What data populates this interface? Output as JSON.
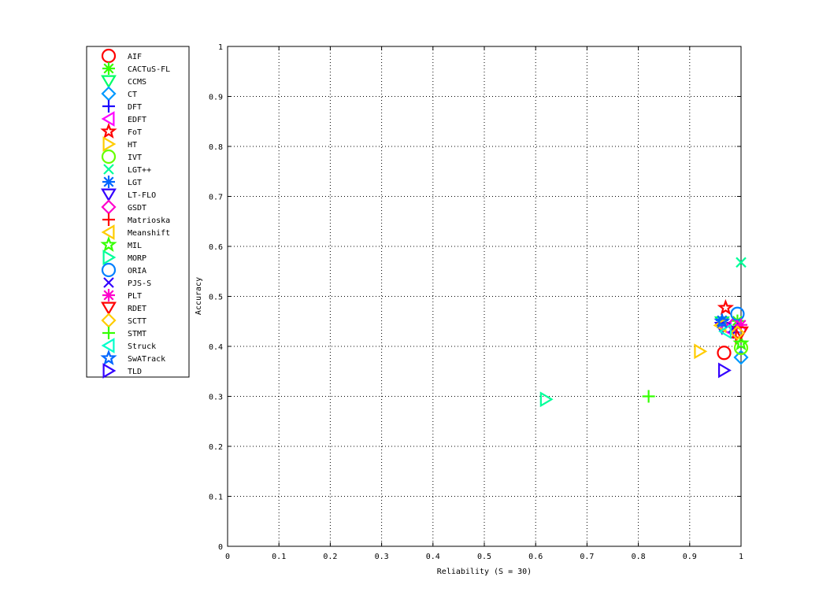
{
  "chart_data": {
    "type": "scatter",
    "title": "",
    "xlabel": "Reliability (S = 30)",
    "ylabel": "Accuracy",
    "xlim": [
      0,
      1
    ],
    "ylim": [
      0,
      1
    ],
    "xticks": [
      "0",
      "0.1",
      "0.2",
      "0.3",
      "0.4",
      "0.5",
      "0.6",
      "0.7",
      "0.8",
      "0.9",
      "1"
    ],
    "yticks": [
      "0",
      "0.1",
      "0.2",
      "0.3",
      "0.4",
      "0.5",
      "0.6",
      "0.7",
      "0.8",
      "0.9",
      "1"
    ],
    "grid": true,
    "legend_position": "outside-left",
    "series": [
      {
        "name": "AIF",
        "marker": "circle",
        "color": "#ff0000",
        "x": 0.967,
        "y": 0.387
      },
      {
        "name": "CACTuS-FL",
        "marker": "asterisk",
        "color": "#33ff00",
        "x": 0.993,
        "y": 0.451
      },
      {
        "name": "CCMS",
        "marker": "triangle-down",
        "color": "#00ff66",
        "x": 0.963,
        "y": 0.448
      },
      {
        "name": "CT",
        "marker": "diamond",
        "color": "#0099ff",
        "x": 1.0,
        "y": 0.378
      },
      {
        "name": "DFT",
        "marker": "plus",
        "color": "#1a00ff",
        "x": 0.985,
        "y": 0.428
      },
      {
        "name": "EDFT",
        "marker": "triangle-left",
        "color": "#ff00ff",
        "x": 0.97,
        "y": 0.437
      },
      {
        "name": "FoT",
        "marker": "pentagram",
        "color": "#ff0000",
        "x": 0.97,
        "y": 0.477
      },
      {
        "name": "HT",
        "marker": "triangle-right",
        "color": "#ffcc00",
        "x": 0.92,
        "y": 0.39
      },
      {
        "name": "IVT",
        "marker": "circle",
        "color": "#66ff00",
        "x": 1.0,
        "y": 0.397
      },
      {
        "name": "LGT++",
        "marker": "x",
        "color": "#00ff99",
        "x": 1.0,
        "y": 0.568
      },
      {
        "name": "LGT",
        "marker": "asterisk",
        "color": "#0066ff",
        "x": 0.963,
        "y": 0.452
      },
      {
        "name": "LT-FLO",
        "marker": "triangle-down",
        "color": "#3300ff",
        "x": 0.963,
        "y": 0.437
      },
      {
        "name": "GSDT",
        "marker": "diamond",
        "color": "#ff00cc",
        "x": 0.985,
        "y": 0.443
      },
      {
        "name": "Matrioska",
        "marker": "plus",
        "color": "#ff0000",
        "x": 0.99,
        "y": 0.418
      },
      {
        "name": "Meanshift",
        "marker": "triangle-left",
        "color": "#ffcc00",
        "x": 0.96,
        "y": 0.442
      },
      {
        "name": "MIL",
        "marker": "pentagram",
        "color": "#33ff00",
        "x": 1.0,
        "y": 0.406
      },
      {
        "name": "MORP",
        "marker": "triangle-right",
        "color": "#00ff99",
        "x": 0.62,
        "y": 0.294
      },
      {
        "name": "ORIA",
        "marker": "circle",
        "color": "#0080ff",
        "x": 0.993,
        "y": 0.465
      },
      {
        "name": "PJS-S",
        "marker": "x",
        "color": "#3300ff",
        "x": 0.985,
        "y": 0.437
      },
      {
        "name": "PLT",
        "marker": "asterisk",
        "color": "#ff00cc",
        "x": 1.0,
        "y": 0.443
      },
      {
        "name": "RDET",
        "marker": "triangle-down",
        "color": "#ff0000",
        "x": 1.0,
        "y": 0.428
      },
      {
        "name": "SCTT",
        "marker": "diamond",
        "color": "#ffcc00",
        "x": 0.993,
        "y": 0.427
      },
      {
        "name": "STMT",
        "marker": "plus",
        "color": "#33ff00",
        "x": 0.82,
        "y": 0.3
      },
      {
        "name": "Struck",
        "marker": "triangle-left",
        "color": "#00ffcc",
        "x": 0.97,
        "y": 0.43
      },
      {
        "name": "SwATrack",
        "marker": "pentagram",
        "color": "#0066ff",
        "x": 0.963,
        "y": 0.45
      },
      {
        "name": "TLD",
        "marker": "triangle-right",
        "color": "#3300ff",
        "x": 0.967,
        "y": 0.352
      }
    ]
  }
}
